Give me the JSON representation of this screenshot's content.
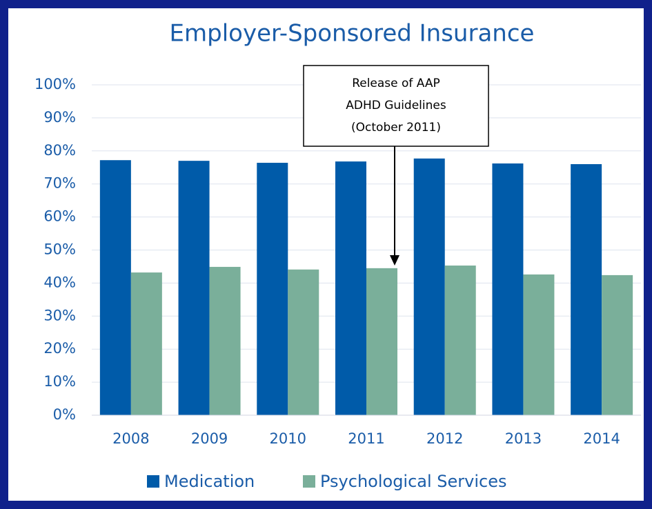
{
  "chart_data": {
    "type": "bar",
    "title": "Employer-Sponsored Insurance",
    "categories": [
      "2008",
      "2009",
      "2010",
      "2011",
      "2012",
      "2013",
      "2014"
    ],
    "series": [
      {
        "name": "Medication",
        "color": "#005ba9",
        "values": [
          77.2,
          77.0,
          76.4,
          76.8,
          77.7,
          76.2,
          76.0
        ]
      },
      {
        "name": "Psychological Services",
        "color": "#7aaf9a",
        "values": [
          43.2,
          44.9,
          44.1,
          44.5,
          45.3,
          42.6,
          42.4
        ]
      }
    ],
    "ylim": [
      0,
      100
    ],
    "yticks": [
      {
        "value": 0,
        "label": "0%"
      },
      {
        "value": 10,
        "label": "10%"
      },
      {
        "value": 20,
        "label": "20%"
      },
      {
        "value": 30,
        "label": "30%"
      },
      {
        "value": 40,
        "label": "40%"
      },
      {
        "value": 50,
        "label": "50%"
      },
      {
        "value": 60,
        "label": "60%"
      },
      {
        "value": 70,
        "label": "70%"
      },
      {
        "value": 80,
        "label": "80%"
      },
      {
        "value": 90,
        "label": "90%"
      },
      {
        "value": 100,
        "label": "100%"
      }
    ],
    "grid": true,
    "legend": "bottom",
    "annotation": {
      "lines": [
        "Release of AAP",
        "ADHD Guidelines",
        "(October 2011)"
      ]
    }
  }
}
